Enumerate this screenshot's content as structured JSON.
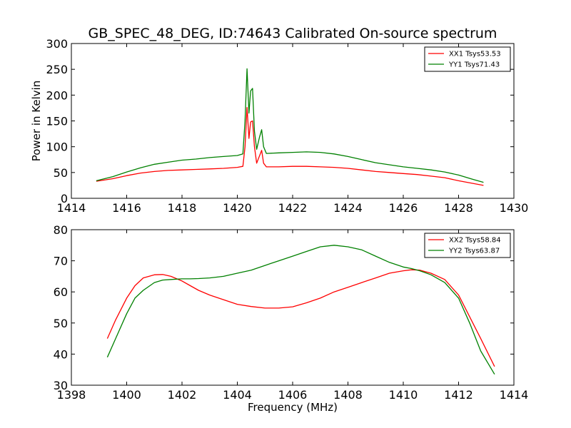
{
  "title": "GB_SPEC_48_DEG, ID:74643 Calibrated On-source spectrum",
  "chart_data": [
    {
      "type": "line",
      "ylabel": "Power in Kelvin",
      "xlabel": "",
      "xlim": [
        1414,
        1430
      ],
      "ylim": [
        0,
        300
      ],
      "xticks": [
        "1414",
        "1416",
        "1418",
        "1420",
        "1422",
        "1424",
        "1426",
        "1428",
        "1430"
      ],
      "yticks": [
        "0",
        "50",
        "100",
        "150",
        "200",
        "250",
        "300"
      ],
      "legend_position": "top-right",
      "series": [
        {
          "name": "XX1 Tsys53.53",
          "color": "#ff0000",
          "x": [
            1414.9,
            1415.5,
            1416.0,
            1416.5,
            1417.0,
            1417.5,
            1418.0,
            1418.5,
            1419.0,
            1419.5,
            1420.0,
            1420.2,
            1420.28,
            1420.35,
            1420.42,
            1420.48,
            1420.55,
            1420.62,
            1420.7,
            1420.8,
            1420.88,
            1420.95,
            1421.05,
            1421.5,
            1422.0,
            1422.5,
            1423.0,
            1423.5,
            1424.0,
            1424.5,
            1425.0,
            1425.5,
            1426.0,
            1426.5,
            1427.0,
            1427.5,
            1428.0,
            1428.5,
            1428.9
          ],
          "y": [
            33,
            38,
            44,
            49,
            52,
            54,
            55,
            56,
            57,
            58,
            60,
            62,
            100,
            176,
            116,
            148,
            150,
            100,
            68,
            82,
            93,
            68,
            61,
            61,
            62,
            62,
            61,
            60,
            58,
            55,
            52,
            50,
            48,
            46,
            43,
            40,
            34,
            29,
            25
          ]
        },
        {
          "name": "YY1 Tsys71.43",
          "color": "#008000",
          "x": [
            1414.9,
            1415.5,
            1416.0,
            1416.5,
            1417.0,
            1417.5,
            1418.0,
            1418.5,
            1419.0,
            1419.5,
            1420.0,
            1420.2,
            1420.28,
            1420.35,
            1420.42,
            1420.48,
            1420.55,
            1420.62,
            1420.7,
            1420.8,
            1420.88,
            1420.95,
            1421.05,
            1421.5,
            1422.0,
            1422.5,
            1423.0,
            1423.5,
            1424.0,
            1424.5,
            1425.0,
            1425.5,
            1426.0,
            1426.5,
            1427.0,
            1427.5,
            1428.0,
            1428.5,
            1428.9
          ],
          "y": [
            34,
            42,
            51,
            59,
            66,
            70,
            74,
            76,
            79,
            81,
            83,
            86,
            150,
            251,
            165,
            208,
            213,
            130,
            95,
            118,
            133,
            100,
            87,
            88,
            89,
            90,
            89,
            86,
            81,
            75,
            69,
            65,
            61,
            58,
            55,
            51,
            45,
            37,
            31
          ]
        }
      ]
    },
    {
      "type": "line",
      "ylabel": "",
      "xlabel": "Frequency (MHz)",
      "xlim": [
        1398,
        1414
      ],
      "ylim": [
        30,
        80
      ],
      "xticks": [
        "1398",
        "1400",
        "1402",
        "1404",
        "1406",
        "1408",
        "1410",
        "1412",
        "1414"
      ],
      "yticks": [
        "30",
        "40",
        "50",
        "60",
        "70",
        "80"
      ],
      "legend_position": "top-right",
      "series": [
        {
          "name": "XX2 Tsys58.84",
          "color": "#ff0000",
          "x": [
            1399.3,
            1399.6,
            1400.0,
            1400.3,
            1400.6,
            1401.0,
            1401.3,
            1401.6,
            1402.0,
            1402.3,
            1402.6,
            1403.0,
            1403.5,
            1404.0,
            1404.5,
            1405.0,
            1405.5,
            1406.0,
            1406.5,
            1407.0,
            1407.5,
            1408.0,
            1408.5,
            1409.0,
            1409.5,
            1410.0,
            1410.3,
            1410.6,
            1411.0,
            1411.5,
            1412.0,
            1412.4,
            1412.8,
            1413.3
          ],
          "y": [
            45,
            51,
            58,
            62,
            64.5,
            65.5,
            65.6,
            65,
            63.5,
            62,
            60.5,
            59,
            57.5,
            56,
            55.3,
            54.8,
            54.8,
            55.2,
            56.5,
            58,
            60,
            61.5,
            63,
            64.5,
            66,
            66.8,
            67.1,
            67,
            66,
            64,
            59,
            52,
            45,
            36
          ]
        },
        {
          "name": "YY2 Tsys63.87",
          "color": "#008000",
          "x": [
            1399.3,
            1399.6,
            1400.0,
            1400.3,
            1400.6,
            1401.0,
            1401.3,
            1401.6,
            1402.0,
            1402.3,
            1402.6,
            1403.0,
            1403.5,
            1404.0,
            1404.5,
            1405.0,
            1405.5,
            1406.0,
            1406.5,
            1407.0,
            1407.5,
            1408.0,
            1408.5,
            1409.0,
            1409.5,
            1410.0,
            1410.3,
            1410.6,
            1411.0,
            1411.5,
            1412.0,
            1412.4,
            1412.8,
            1413.3
          ],
          "y": [
            39,
            45,
            53,
            58,
            60.5,
            63,
            63.8,
            64,
            64.2,
            64.2,
            64.3,
            64.5,
            65,
            66,
            67,
            68.5,
            70,
            71.5,
            73,
            74.5,
            75,
            74.5,
            73.5,
            71.5,
            69.5,
            68,
            67.5,
            66.8,
            65.5,
            63,
            58,
            50,
            41,
            33.5
          ]
        }
      ]
    }
  ]
}
